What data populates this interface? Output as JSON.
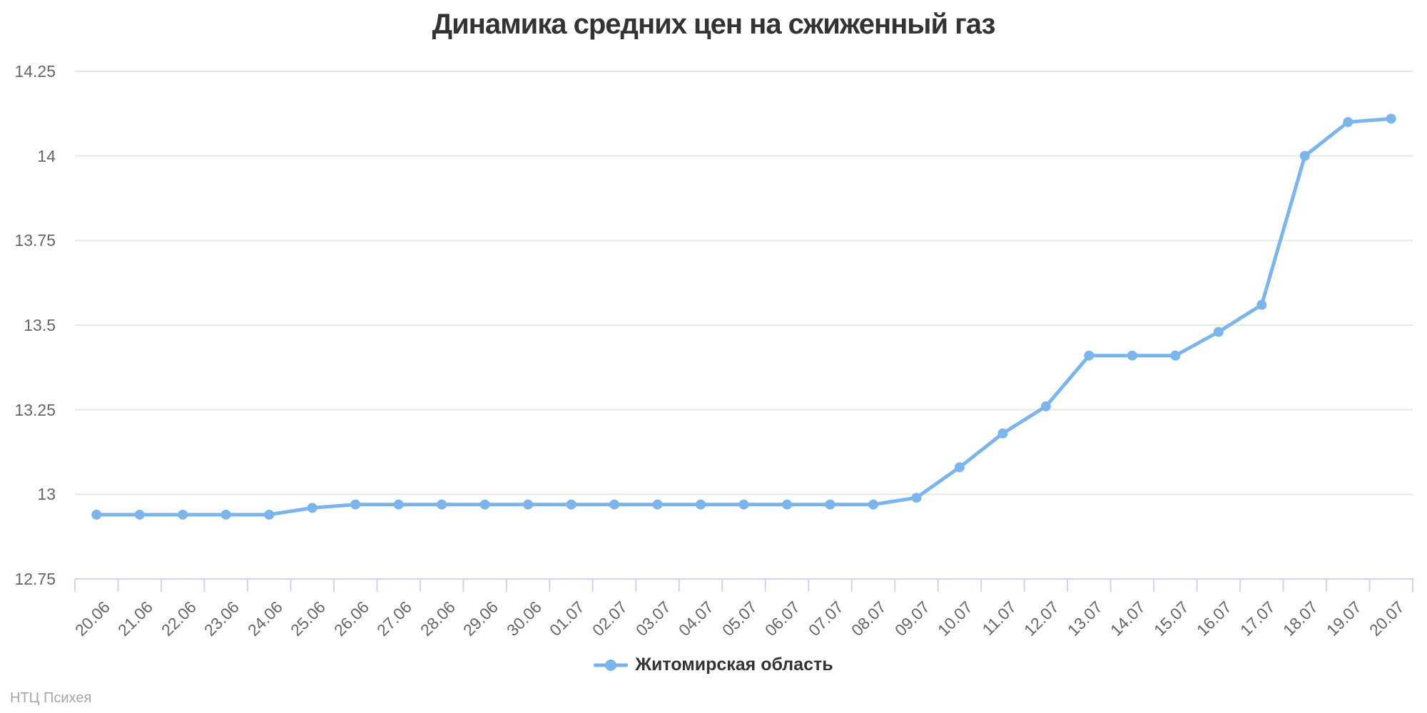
{
  "title": "Динамика средних цен на сжиженный газ",
  "credits": "НТЦ Психея",
  "colors": {
    "series": "#7cb5ec",
    "grid": "#e6e6e6",
    "axis": "#ccd6eb",
    "labels": "#666666",
    "title": "#333333",
    "credits": "#a6a6a6",
    "background": "#ffffff"
  },
  "legend": {
    "position": "bottom-center",
    "items": [
      {
        "label": "Житомирская область",
        "color": "#7cb5ec"
      }
    ]
  },
  "chart_data": {
    "type": "line",
    "title": "Динамика средних цен на сжиженный газ",
    "xlabel": "",
    "ylabel": "",
    "grid": true,
    "legend_position": "bottom-center",
    "ylim": [
      12.75,
      14.25
    ],
    "yticks": [
      12.75,
      13,
      13.25,
      13.5,
      13.75,
      14,
      14.25
    ],
    "categories": [
      "20.06",
      "21.06",
      "22.06",
      "23.06",
      "24.06",
      "25.06",
      "26.06",
      "27.06",
      "28.06",
      "29.06",
      "30.06",
      "01.07",
      "02.07",
      "03.07",
      "04.07",
      "05.07",
      "06.07",
      "07.07",
      "08.07",
      "09.07",
      "10.07",
      "11.07",
      "12.07",
      "13.07",
      "14.07",
      "15.07",
      "16.07",
      "17.07",
      "18.07",
      "19.07",
      "20.07"
    ],
    "series": [
      {
        "name": "Житомирская область",
        "color": "#7cb5ec",
        "values": [
          12.94,
          12.94,
          12.94,
          12.94,
          12.94,
          12.96,
          12.97,
          12.97,
          12.97,
          12.97,
          12.97,
          12.97,
          12.97,
          12.97,
          12.97,
          12.97,
          12.97,
          12.97,
          12.97,
          12.99,
          13.08,
          13.18,
          13.26,
          13.41,
          13.41,
          13.41,
          13.48,
          13.56,
          14,
          14.1,
          14.11
        ]
      }
    ]
  }
}
